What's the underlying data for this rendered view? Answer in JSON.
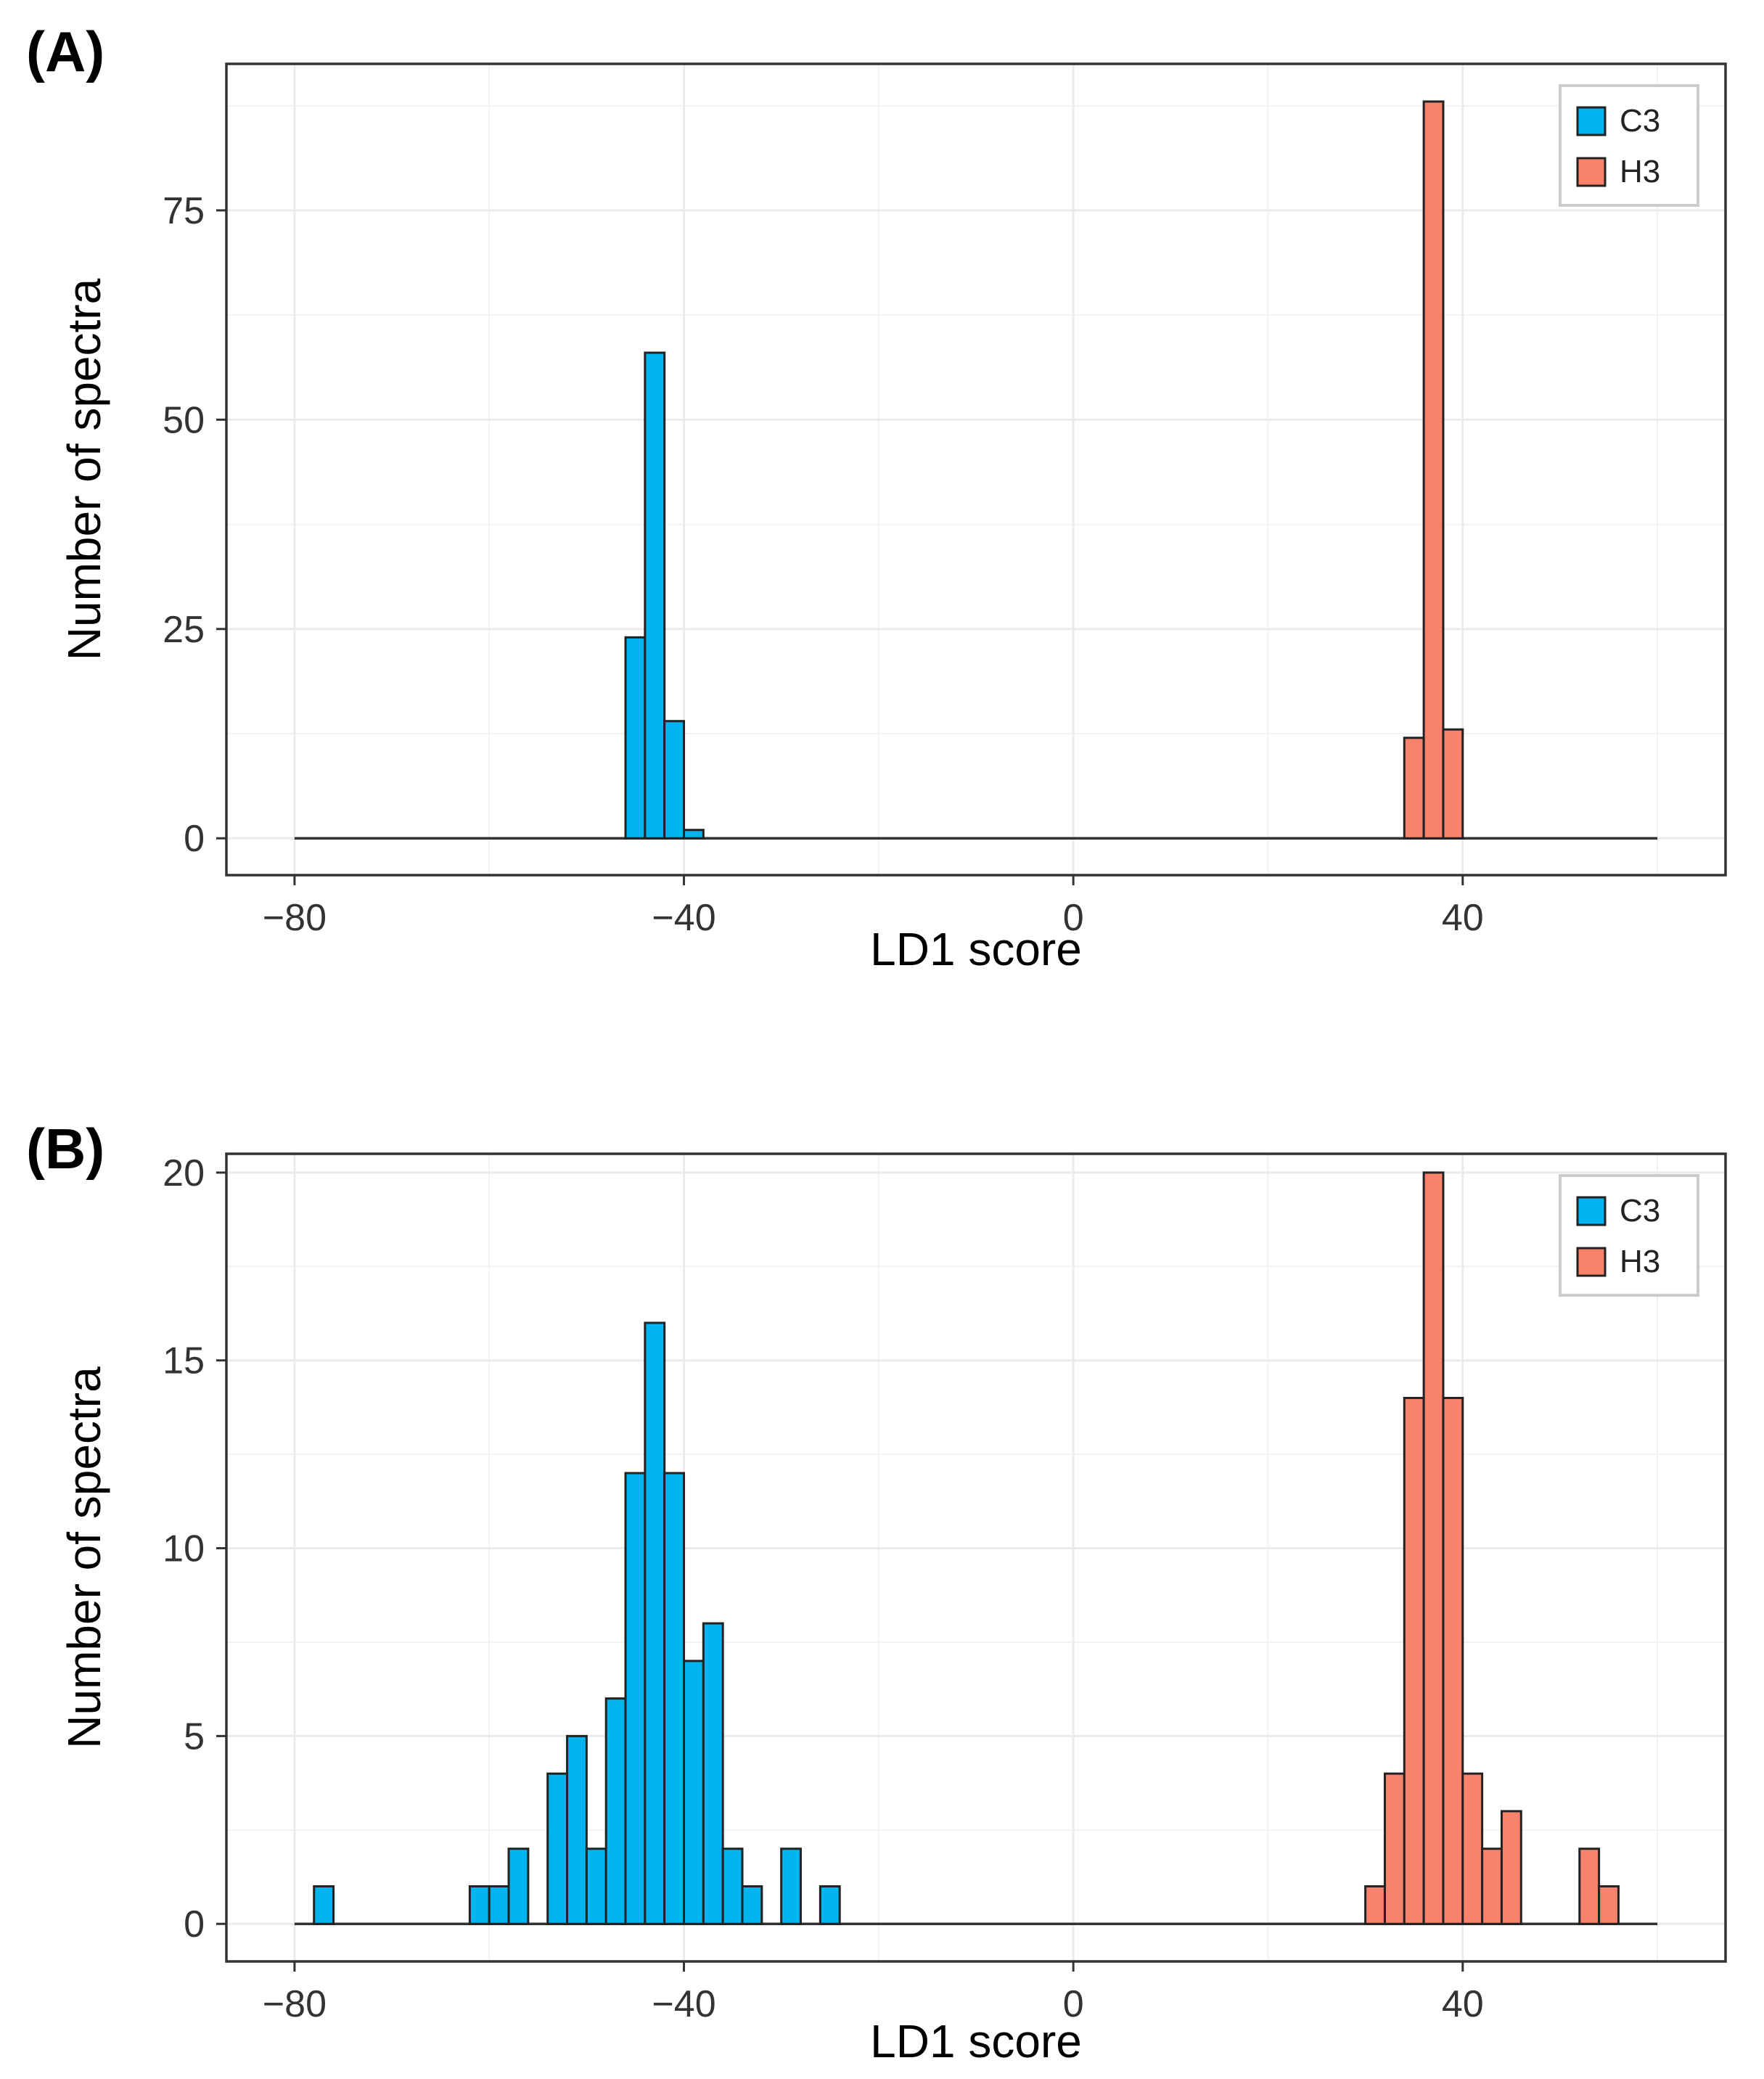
{
  "chart_data": [
    {
      "type": "bar",
      "panel_label": "(A)",
      "xlabel": "LD1 score",
      "ylabel": "Number of spectra",
      "xlim": [
        -87,
        67
      ],
      "ylim": [
        -4.4,
        92.5
      ],
      "xticks": [
        -80,
        -40,
        0,
        40
      ],
      "xtick_labels": [
        "−80",
        "−40",
        "0",
        "40"
      ],
      "yticks": [
        0,
        25,
        50,
        75
      ],
      "ytick_labels": [
        "0",
        "25",
        "50",
        "75"
      ],
      "baseline": [
        -80,
        60
      ],
      "bin_width": 2,
      "grid": true,
      "legend_position": "top-right",
      "series": [
        {
          "name": "C3",
          "color": "#00B4F0",
          "bins": [
            {
              "x": -45,
              "value": 24
            },
            {
              "x": -43,
              "value": 58
            },
            {
              "x": -41,
              "value": 14
            },
            {
              "x": -39,
              "value": 1
            }
          ]
        },
        {
          "name": "H3",
          "color": "#F9826C",
          "bins": [
            {
              "x": 35,
              "value": 12
            },
            {
              "x": 37,
              "value": 88
            },
            {
              "x": 39,
              "value": 13
            }
          ]
        }
      ]
    },
    {
      "type": "bar",
      "panel_label": "(B)",
      "xlabel": "LD1 score",
      "ylabel": "Number of spectra",
      "xlim": [
        -87,
        67
      ],
      "ylim": [
        -1.0,
        20.5
      ],
      "xticks": [
        -80,
        -40,
        0,
        40
      ],
      "xtick_labels": [
        "−80",
        "−40",
        "0",
        "40"
      ],
      "yticks": [
        0,
        5,
        10,
        15,
        20
      ],
      "ytick_labels": [
        "0",
        "5",
        "10",
        "15",
        "20"
      ],
      "baseline": [
        -80,
        60
      ],
      "bin_width": 2,
      "grid": true,
      "legend_position": "top-right",
      "series": [
        {
          "name": "C3",
          "color": "#00B4F0",
          "bins": [
            {
              "x": -77,
              "value": 1
            },
            {
              "x": -61,
              "value": 1
            },
            {
              "x": -59,
              "value": 1
            },
            {
              "x": -57,
              "value": 2
            },
            {
              "x": -53,
              "value": 4
            },
            {
              "x": -51,
              "value": 5
            },
            {
              "x": -49,
              "value": 2
            },
            {
              "x": -47,
              "value": 6
            },
            {
              "x": -45,
              "value": 12
            },
            {
              "x": -43,
              "value": 16
            },
            {
              "x": -41,
              "value": 12
            },
            {
              "x": -39,
              "value": 7
            },
            {
              "x": -37,
              "value": 8
            },
            {
              "x": -35,
              "value": 2
            },
            {
              "x": -33,
              "value": 1
            },
            {
              "x": -29,
              "value": 2
            },
            {
              "x": -25,
              "value": 1
            }
          ]
        },
        {
          "name": "H3",
          "color": "#F9826C",
          "bins": [
            {
              "x": 31,
              "value": 1
            },
            {
              "x": 33,
              "value": 4
            },
            {
              "x": 35,
              "value": 14
            },
            {
              "x": 37,
              "value": 20
            },
            {
              "x": 39,
              "value": 14
            },
            {
              "x": 41,
              "value": 4
            },
            {
              "x": 43,
              "value": 2
            },
            {
              "x": 45,
              "value": 3
            },
            {
              "x": 53,
              "value": 2
            },
            {
              "x": 55,
              "value": 1
            }
          ]
        }
      ]
    }
  ]
}
